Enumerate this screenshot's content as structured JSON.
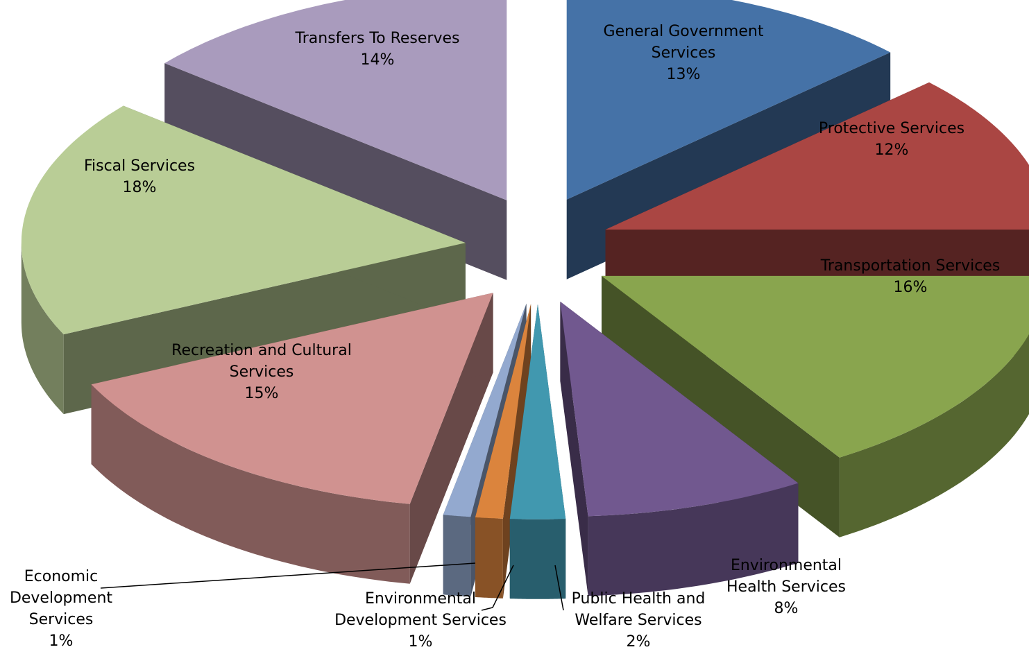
{
  "chart_data": {
    "type": "pie",
    "categories": [
      "General Government Services",
      "Protective Services",
      "Transportation Services",
      "Environmental Health Services",
      "Public Health and Welfare Services",
      "Environmental Development Services",
      "Economic Development Services",
      "Recreation and Cultural Services",
      "Fiscal Services",
      "Transfers To Reserves"
    ],
    "values": [
      13,
      12,
      16,
      8,
      2,
      1,
      1,
      15,
      18,
      14
    ],
    "value_labels": [
      "13%",
      "12%",
      "16%",
      "8%",
      "2%",
      "1%",
      "1%",
      "15%",
      "18%",
      "14%"
    ],
    "colors": [
      "#4572a7",
      "#aa4643",
      "#89a54e",
      "#71588f",
      "#4198af",
      "#db843d",
      "#93a9cf",
      "#d09290",
      "#b9cd96",
      "#a99bbd"
    ]
  }
}
